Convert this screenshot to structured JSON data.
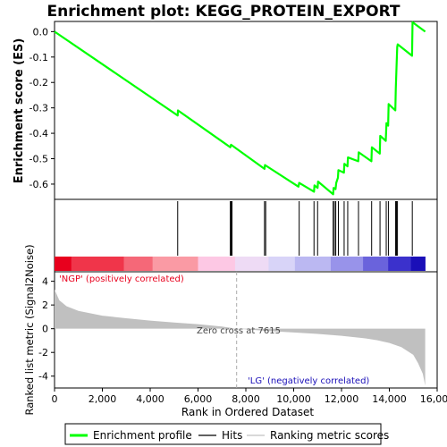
{
  "chart_data": {
    "type": "line",
    "title": "Enrichment plot: KEGG_PROTEIN_EXPORT",
    "xlabel": "Rank in Ordered Dataset",
    "es_panel": {
      "ylabel": "Enrichment score (ES)",
      "ylim": [
        -0.66,
        0.04
      ],
      "yticks": [
        "0.0",
        "-0.1",
        "-0.2",
        "-0.3",
        "-0.4",
        "-0.5",
        "-0.6"
      ],
      "ytick_values": [
        0.0,
        -0.1,
        -0.2,
        -0.3,
        -0.4,
        -0.5,
        -0.6
      ],
      "series_name": "Enrichment profile",
      "color": "#00ff00",
      "points": [
        [
          0,
          0.0
        ],
        [
          5150,
          -0.33
        ],
        [
          5160,
          -0.31
        ],
        [
          7350,
          -0.455
        ],
        [
          7380,
          -0.445
        ],
        [
          8780,
          -0.54
        ],
        [
          8800,
          -0.525
        ],
        [
          10200,
          -0.61
        ],
        [
          10230,
          -0.595
        ],
        [
          10850,
          -0.63
        ],
        [
          10870,
          -0.605
        ],
        [
          11000,
          -0.615
        ],
        [
          11020,
          -0.59
        ],
        [
          11650,
          -0.64
        ],
        [
          11670,
          -0.615
        ],
        [
          11750,
          -0.62
        ],
        [
          11780,
          -0.595
        ],
        [
          11850,
          -0.575
        ],
        [
          11870,
          -0.545
        ],
        [
          12100,
          -0.555
        ],
        [
          12120,
          -0.52
        ],
        [
          12250,
          -0.53
        ],
        [
          12270,
          -0.495
        ],
        [
          12700,
          -0.51
        ],
        [
          12720,
          -0.475
        ],
        [
          13250,
          -0.51
        ],
        [
          13270,
          -0.455
        ],
        [
          13600,
          -0.48
        ],
        [
          13620,
          -0.41
        ],
        [
          13850,
          -0.43
        ],
        [
          13880,
          -0.36
        ],
        [
          13950,
          -0.37
        ],
        [
          13970,
          -0.285
        ],
        [
          14250,
          -0.31
        ],
        [
          14270,
          -0.225
        ],
        [
          14300,
          -0.14
        ],
        [
          14330,
          -0.06
        ],
        [
          14350,
          -0.05
        ],
        [
          14950,
          -0.095
        ],
        [
          14970,
          0.037
        ],
        [
          15500,
          0.0
        ]
      ]
    },
    "hits_panel": {
      "series_name": "Hits",
      "hit_ranks": [
        5150,
        7350,
        7380,
        7420,
        8780,
        8830,
        10230,
        10850,
        11000,
        11650,
        11700,
        11760,
        11870,
        12110,
        12260,
        12710,
        13260,
        13610,
        13870,
        13960,
        14260,
        14300,
        14340,
        14960
      ],
      "heat_colors": [
        "#e8001d",
        "#f0354a",
        "#f56878",
        "#fa9aa4",
        "#fdc8e4",
        "#eedbf5",
        "#d8d4f8",
        "#bbb8f2",
        "#9893ea",
        "#6a63dc",
        "#3b31cc",
        "#1a0fb8"
      ],
      "heat_bounds": [
        0,
        700,
        2900,
        4100,
        6000,
        7550,
        8950,
        10050,
        11550,
        12900,
        13950,
        14900,
        15500
      ]
    },
    "metric_panel": {
      "ylabel": "Ranked list metric (Signal2Noise)",
      "ylim": [
        -5,
        4.8
      ],
      "yticks": [
        "4",
        "2",
        "0",
        "-2",
        "-4"
      ],
      "ytick_values": [
        4,
        2,
        0,
        -2,
        -4
      ],
      "series_name": "Ranking metric scores",
      "color": "#c0c0c0",
      "zero_cross": 7615,
      "zero_cross_label": "Zero cross at 7615",
      "positive_label": "'NGP' (positively correlated)",
      "negative_label": "'LG' (negatively correlated)",
      "points": [
        [
          0,
          3.3
        ],
        [
          200,
          2.4
        ],
        [
          500,
          1.9
        ],
        [
          1000,
          1.5
        ],
        [
          2000,
          1.1
        ],
        [
          3000,
          0.88
        ],
        [
          4000,
          0.68
        ],
        [
          5000,
          0.52
        ],
        [
          6000,
          0.38
        ],
        [
          7000,
          0.18
        ],
        [
          7615,
          0.0
        ],
        [
          9000,
          -0.2
        ],
        [
          10000,
          -0.32
        ],
        [
          11000,
          -0.44
        ],
        [
          12000,
          -0.6
        ],
        [
          13000,
          -0.82
        ],
        [
          13500,
          -0.98
        ],
        [
          14000,
          -1.2
        ],
        [
          14500,
          -1.55
        ],
        [
          15000,
          -2.2
        ],
        [
          15200,
          -2.9
        ],
        [
          15400,
          -3.8
        ],
        [
          15500,
          -4.8
        ]
      ]
    },
    "x_axis": {
      "xlim": [
        0,
        16000
      ],
      "xticks": [
        "0",
        "2,000",
        "4,000",
        "6,000",
        "8,000",
        "10,000",
        "12,000",
        "14,000",
        "16,000"
      ],
      "xtick_values": [
        0,
        2000,
        4000,
        6000,
        8000,
        10000,
        12000,
        14000,
        16000
      ]
    },
    "legend": {
      "position": "bottom",
      "items": [
        {
          "label": "Enrichment profile",
          "color": "#00ff00"
        },
        {
          "label": "Hits",
          "color": "#000000"
        },
        {
          "label": "Ranking metric scores",
          "color": "#c0c0c0"
        }
      ]
    }
  }
}
